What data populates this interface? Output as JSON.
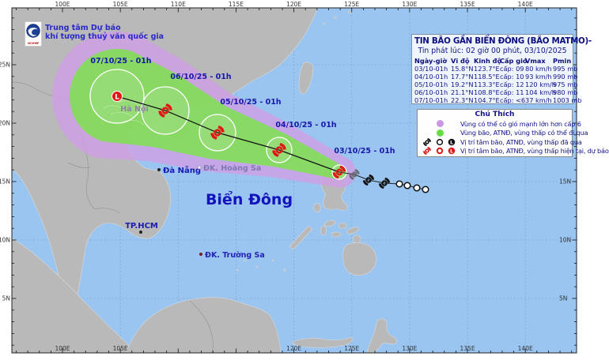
{
  "header": {
    "org_line1": "Trung tâm Dự báo",
    "org_line2": "khí tượng thuỷ văn quốc gia",
    "logo_caption": "NCHMF"
  },
  "info_box": {
    "title": "TIN BÃO GẦN BIỂN ĐÔNG (BÃO MATMO)-",
    "issued": "Tin phát lúc: 02 giờ 00 phút, 03/10/2025",
    "columns": [
      "Ngày-giờ",
      "Vĩ độ",
      "Kinh độ",
      "Cấp gió",
      "Vmax",
      "Pmin"
    ],
    "rows": [
      [
        "03/10-01h",
        "15.8°N",
        "123.7°E",
        "cấp: 09",
        "80 km/h",
        "995 mb"
      ],
      [
        "04/10-01h",
        "17.7°N",
        "118.5°E",
        "cấp: 10",
        "93 km/h",
        "990 mb"
      ],
      [
        "05/10-01h",
        "19.2°N",
        "113.3°E",
        "cấp: 12",
        "120 km/h",
        "975 mb"
      ],
      [
        "06/10-01h",
        "21.1°N",
        "108.8°E",
        "cấp: 11",
        "104 km/h",
        "980 mb"
      ],
      [
        "07/10-01h",
        "22.3°N",
        "104.7°E",
        "cấp: <6",
        "37 km/h",
        "1003 mb"
      ]
    ]
  },
  "legend": {
    "title": "Chú Thích",
    "items": [
      {
        "marker": "purple-dot",
        "label": "Vùng có thể có gió mạnh lớn hơn cấp 6"
      },
      {
        "marker": "green-dot",
        "label": "Vùng bão, ATNĐ, vùng thấp có thể đi qua"
      },
      {
        "marker": "past-symbols",
        "label": "Vị trí tâm bão, ATNĐ, vùng thấp đã qua"
      },
      {
        "marker": "forecast-symbols",
        "label": "Vị trí tâm bão, ATNĐ, vùng thấp hiện tại, dự báo"
      }
    ]
  },
  "map": {
    "sea_label": "Biển Đông",
    "places": {
      "hanoi": "Hà Nội",
      "danang": "Đà Nẵng",
      "hcmc": "TP.HCM",
      "hoangsa": "ĐK. Hoàng Sa",
      "truongsa": "ĐK. Trường Sa"
    },
    "track_labels": [
      "07/10/25 - 01h",
      "06/10/25 - 01h",
      "05/10/25 - 01h",
      "04/10/25 - 01h",
      "03/10/25 - 01h"
    ],
    "storm_L_marker": "L"
  },
  "axes": {
    "lon": [
      "100E",
      "105E",
      "110E",
      "115E",
      "120E",
      "125E",
      "130E",
      "135E",
      "140E"
    ],
    "lat": [
      "25N",
      "20N",
      "15N",
      "10N",
      "5N"
    ]
  },
  "colors": {
    "sea": "#9ac5f1",
    "land": "#b9b9b9",
    "cone_wind_purple": "#cf9fe6",
    "cone_track_green": "#7de24e",
    "storm_red": "#e01818",
    "navy_text": "#1414a8"
  }
}
